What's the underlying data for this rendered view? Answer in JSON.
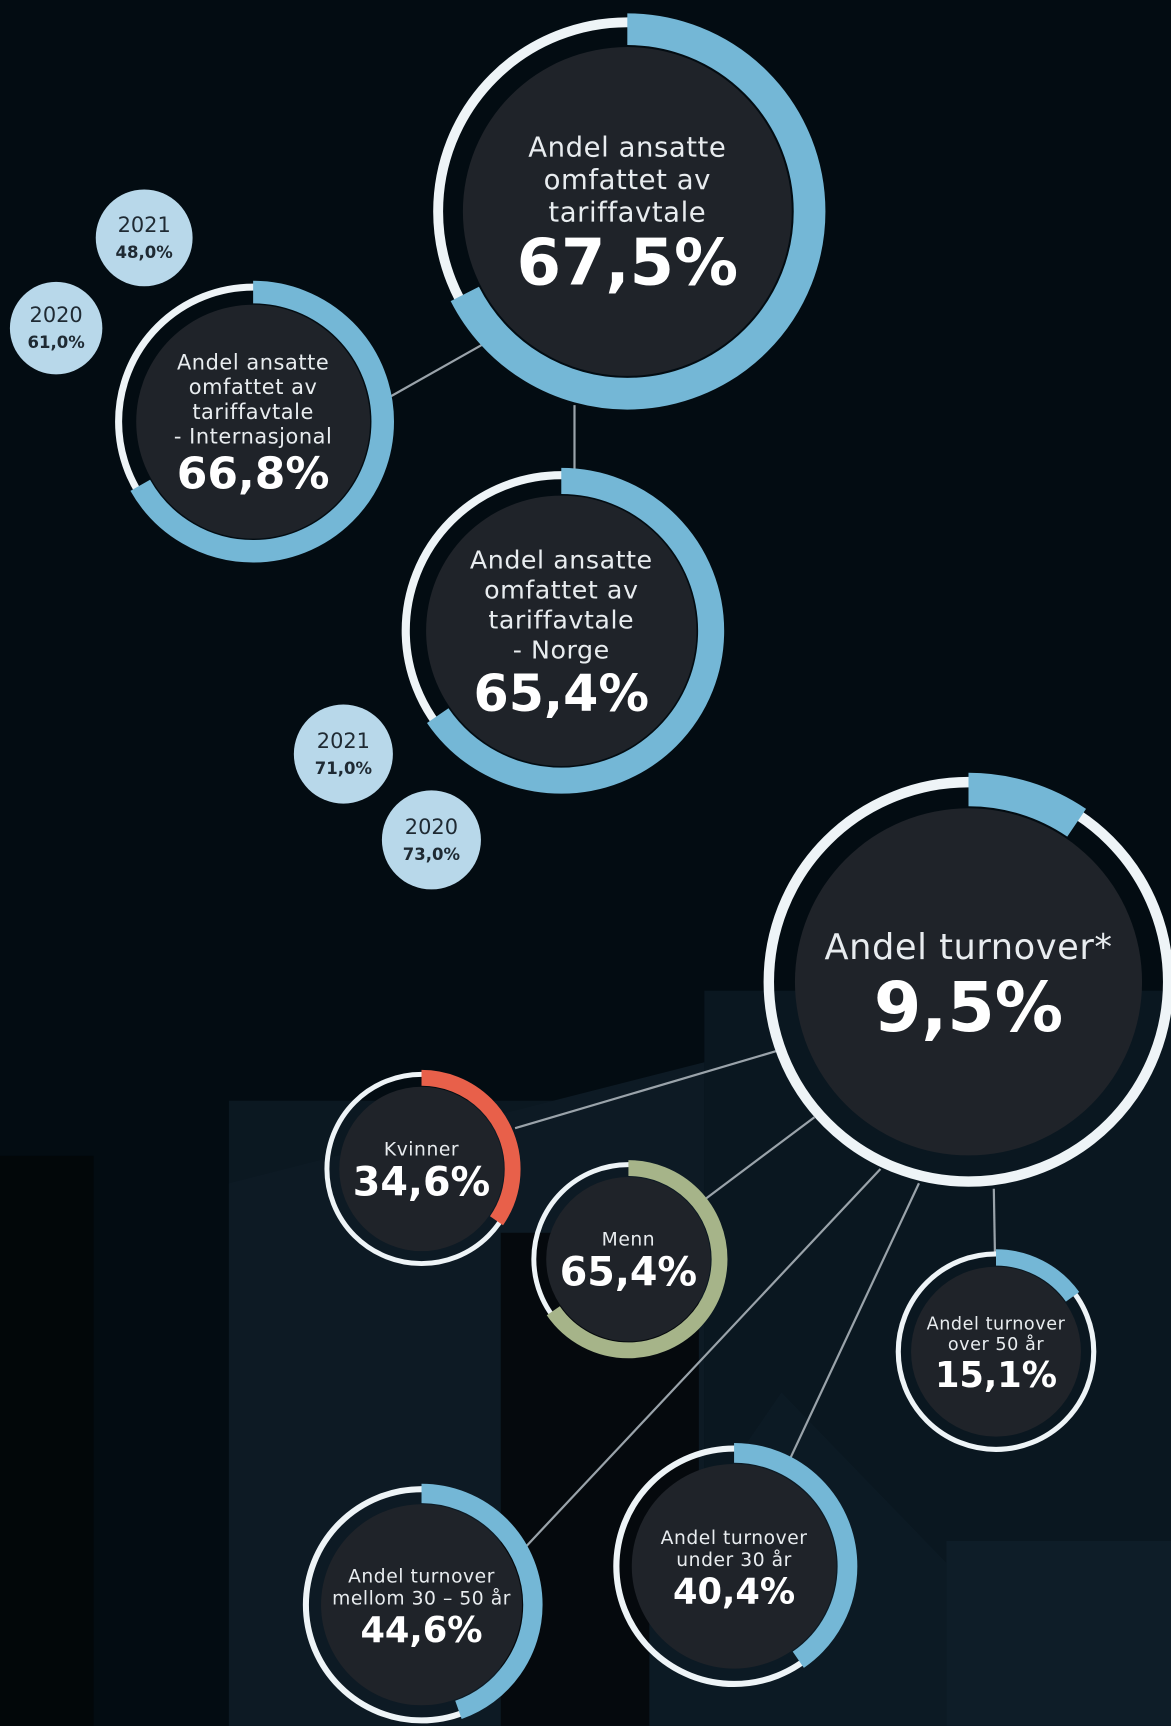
{
  "circles": [
    {
      "label": [
        "Andel ansatte",
        "omfattet av",
        "tariffavtale"
      ],
      "value": 67.5,
      "value_label": "67,5%",
      "color": "#74b7d6"
    },
    {
      "label": [
        "Andel ansatte",
        "omfattet av",
        "tariffavtale",
        "- Internasjonal"
      ],
      "value": 66.8,
      "value_label": "66,8%",
      "color": "#74b7d6"
    },
    {
      "label": [
        "Andel ansatte",
        "omfattet av",
        "tariffavtale",
        "- Norge"
      ],
      "value": 65.4,
      "value_label": "65,4%",
      "color": "#74b7d6"
    },
    {
      "label": [
        "Andel turnover*"
      ],
      "value": 9.5,
      "value_label": "9,5%",
      "color": "#74b7d6"
    },
    {
      "label": [
        "Kvinner"
      ],
      "value": 34.6,
      "value_label": "34,6%",
      "color": "#e8604a"
    },
    {
      "label": [
        "Menn"
      ],
      "value": 65.4,
      "value_label": "65,4%",
      "color": "#a6b489"
    },
    {
      "label": [
        "Andel turnover",
        "over 50 år"
      ],
      "value": 15.1,
      "value_label": "15,1%",
      "color": "#74b7d6"
    },
    {
      "label": [
        "Andel turnover",
        "mellom 30 – 50 år"
      ],
      "value": 44.6,
      "value_label": "44,6%",
      "color": "#74b7d6"
    },
    {
      "label": [
        "Andel turnover",
        "under 30 år"
      ],
      "value": 40.4,
      "value_label": "40,4%",
      "color": "#74b7d6"
    }
  ],
  "history": [
    {
      "year": "2021",
      "value_label": "48,0%"
    },
    {
      "year": "2020",
      "value_label": "61,0%"
    },
    {
      "year": "2021",
      "value_label": "71,0%"
    },
    {
      "year": "2020",
      "value_label": "73,0%"
    }
  ]
}
